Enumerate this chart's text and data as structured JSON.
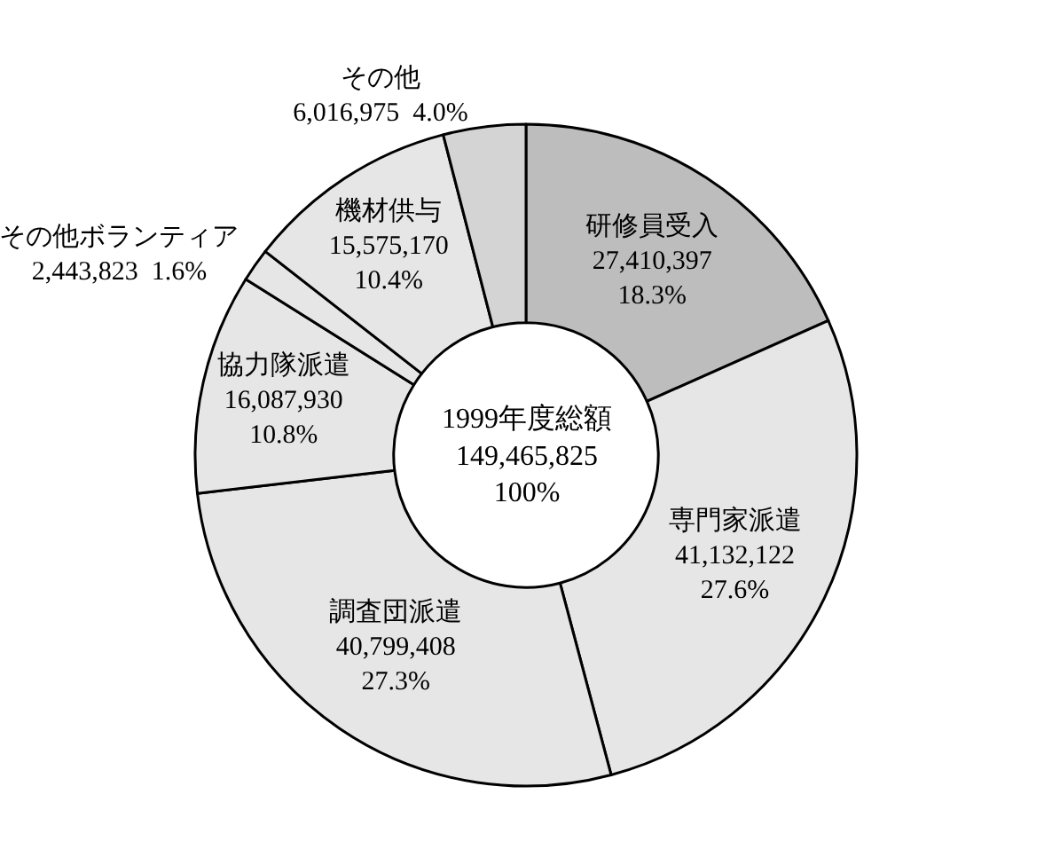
{
  "chart_data": {
    "type": "donut",
    "categories": [
      "研修員受入",
      "専門家派遣",
      "調査団派遣",
      "協力隊派遣",
      "その他ボランティア",
      "機材供与",
      "その他"
    ],
    "values": [
      27410397,
      41132122,
      40799408,
      16087930,
      2443823,
      15575170,
      6016975
    ],
    "value_labels": [
      "27,410,397\n18.3%",
      "41,132,122\n27.6%",
      "40,799,408\n27.3%",
      "16,087,930\n10.8%",
      "2,443,823  1.6%",
      "15,575,170\n10.4%",
      "6,016,975  4.0%"
    ],
    "colors": [
      "#bdbdbd",
      "#e6e6e6",
      "#e6e6e6",
      "#e6e6e6",
      "#e6e6e6",
      "#e6e6e6",
      "#d4d4d4"
    ],
    "annotations": [
      "1999年度総額\n149,465,825\n100%"
    ],
    "legend": false
  }
}
